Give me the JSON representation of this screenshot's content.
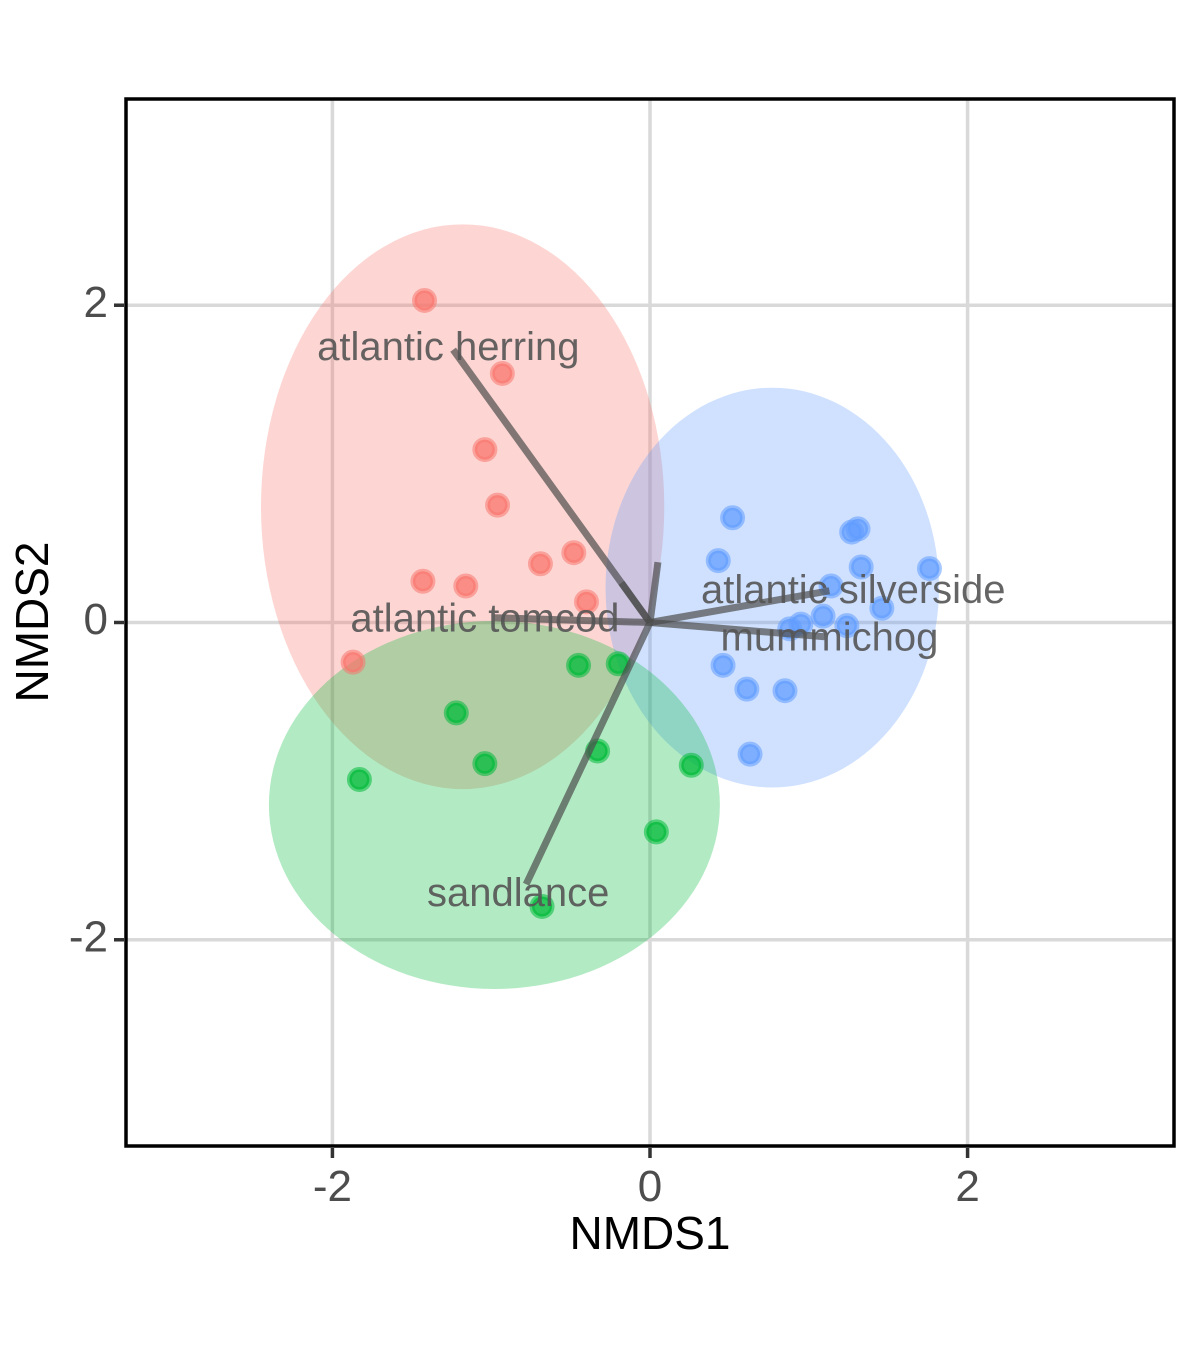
{
  "chart_data": {
    "type": "scatter",
    "title": "",
    "xlabel": "NMDS1",
    "ylabel": "NMDS2",
    "xlim": [
      -3.3,
      3.3
    ],
    "ylim": [
      -3.3,
      3.3
    ],
    "grid": true,
    "x_ticks": [
      -2,
      0,
      2
    ],
    "y_ticks": [
      -2,
      0,
      2
    ],
    "x_tick_labels": [
      "-2",
      "0",
      "2"
    ],
    "y_tick_labels": [
      "-2",
      "0",
      "2"
    ],
    "colors": {
      "red": "#F8766D",
      "blue": "#619CFF",
      "green": "#00BA38"
    },
    "series": [
      {
        "color": "#F8766D",
        "points": [
          [
            -1.42,
            2.03
          ],
          [
            -0.93,
            1.57
          ],
          [
            -1.04,
            1.09
          ],
          [
            -0.96,
            0.74
          ],
          [
            -0.69,
            0.37
          ],
          [
            -0.48,
            0.44
          ],
          [
            -1.43,
            0.26
          ],
          [
            -1.16,
            0.23
          ],
          [
            -0.4,
            0.13
          ],
          [
            -1.87,
            -0.25
          ]
        ],
        "ellipse": {
          "cx": -1.18,
          "cy": 0.73,
          "rx": 1.27,
          "ry": 1.78,
          "angle_deg": 0
        }
      },
      {
        "color": "#619CFF",
        "points": [
          [
            0.52,
            0.66
          ],
          [
            0.43,
            0.39
          ],
          [
            1.27,
            0.57
          ],
          [
            1.31,
            0.59
          ],
          [
            1.33,
            0.35
          ],
          [
            1.76,
            0.34
          ],
          [
            1.14,
            0.23
          ],
          [
            1.46,
            0.09
          ],
          [
            1.09,
            0.04
          ],
          [
            0.95,
            -0.01
          ],
          [
            0.88,
            -0.04
          ],
          [
            1.24,
            -0.02
          ],
          [
            0.46,
            -0.27
          ],
          [
            0.61,
            -0.42
          ],
          [
            0.85,
            -0.43
          ],
          [
            0.63,
            -0.83
          ]
        ],
        "ellipse": {
          "cx": 0.77,
          "cy": 0.22,
          "rx": 1.05,
          "ry": 1.26,
          "angle_deg": 0
        }
      },
      {
        "color": "#00BA38",
        "points": [
          [
            -0.45,
            -0.27
          ],
          [
            -0.2,
            -0.26
          ],
          [
            -1.22,
            -0.57
          ],
          [
            -1.04,
            -0.89
          ],
          [
            -1.83,
            -0.99
          ],
          [
            -0.33,
            -0.81
          ],
          [
            0.26,
            -0.9
          ],
          [
            0.04,
            -1.32
          ],
          [
            -0.68,
            -1.79
          ]
        ],
        "ellipse": {
          "cx": -0.98,
          "cy": -1.15,
          "rx": 1.42,
          "ry": 1.16,
          "angle_deg": 0
        }
      }
    ],
    "vectors": [
      {
        "label": "atlantic herring",
        "x": -1.24,
        "y": 1.72,
        "label_x": -1.27,
        "label_y": 1.72
      },
      {
        "label": "atlantic silverside",
        "x": 1.13,
        "y": 0.2,
        "label_x": 1.28,
        "label_y": 0.19
      },
      {
        "label": "mummichog",
        "x": 1.1,
        "y": -0.09,
        "label_x": 1.13,
        "label_y": -0.11
      },
      {
        "label": "atlantic tomcod",
        "x": -0.98,
        "y": 0.03,
        "label_x": -1.04,
        "label_y": 0.01
      },
      {
        "label": "sandlance",
        "x": -0.78,
        "y": -1.65,
        "label_x": -0.83,
        "label_y": -1.72
      },
      {
        "label": "",
        "x": 0.05,
        "y": 0.38
      },
      {
        "label": "",
        "x": -0.18,
        "y": 0.25
      }
    ]
  }
}
